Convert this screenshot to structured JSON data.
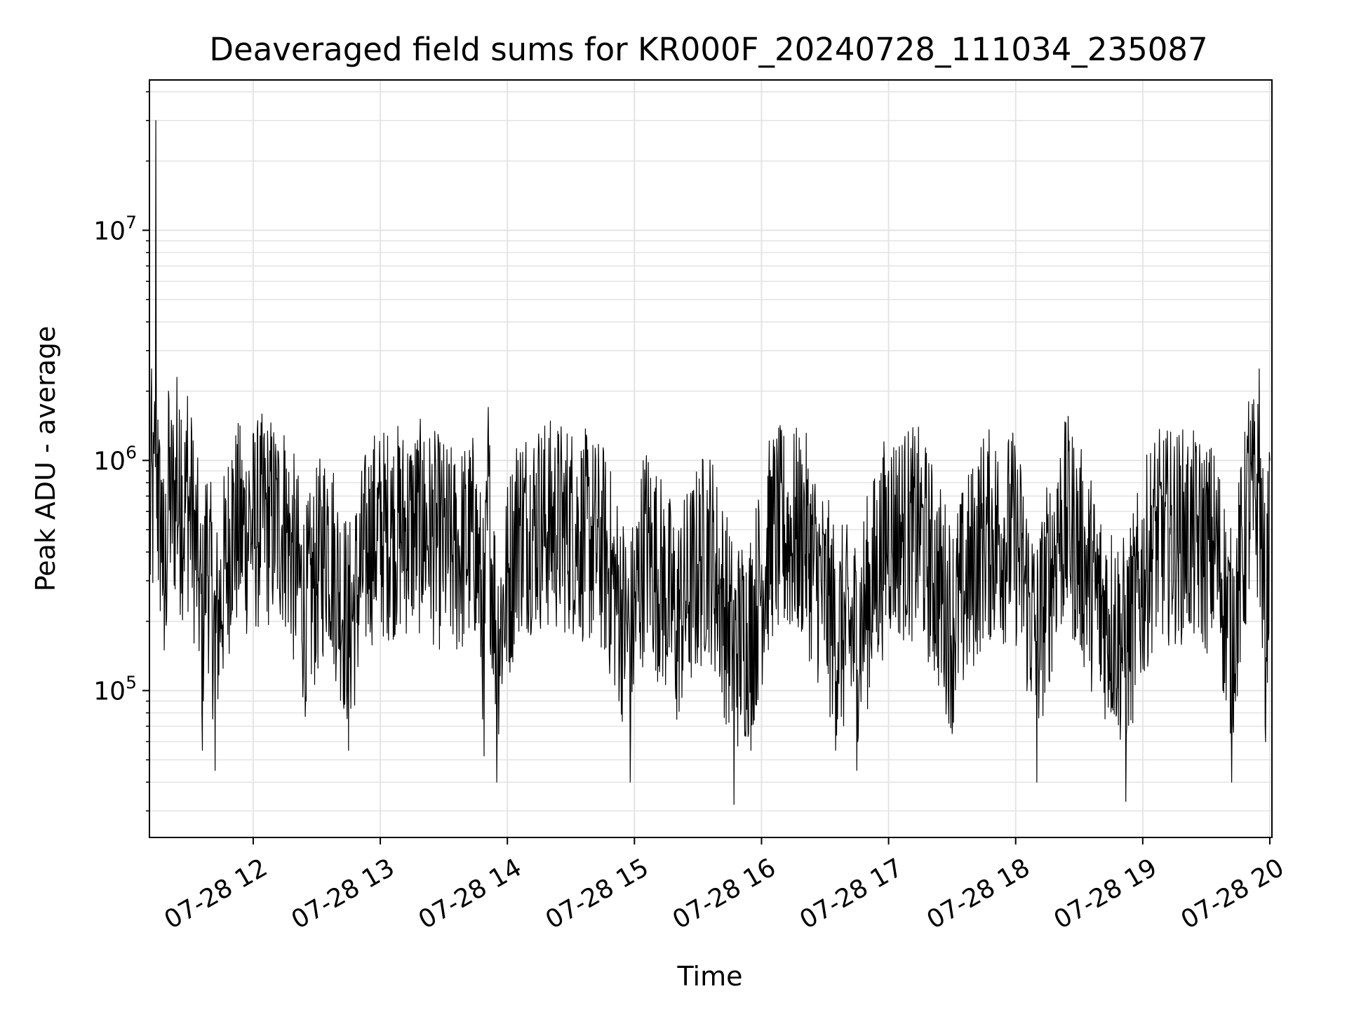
{
  "chart_data": {
    "type": "line",
    "title": "Deaveraged field sums for KR000F_20240728_111034_235087",
    "xlabel": "Time",
    "ylabel": "Peak ADU - average",
    "yscale": "log",
    "ylim": [
      23000,
      45000000
    ],
    "xlim": [
      "07-28 11:11",
      "07-28 20:01"
    ],
    "grid": true,
    "x_tick_labels": [
      "07-28 12",
      "07-28 13",
      "07-28 14",
      "07-28 15",
      "07-28 16",
      "07-28 17",
      "07-28 18",
      "07-28 19",
      "07-28 20"
    ],
    "y_tick_labels": [
      {
        "base": "10",
        "exp": "5"
      },
      {
        "base": "10",
        "exp": "6"
      },
      {
        "base": "10",
        "exp": "7"
      }
    ],
    "series": [
      {
        "color": "#000000",
        "points": [
          [
            "07-28 11:11",
            450000
          ],
          [
            "07-28 11:12",
            2500000
          ],
          [
            "07-28 11:13",
            1200000
          ],
          [
            "07-28 11:14",
            30000000
          ],
          [
            "07-28 11:15",
            1500000
          ],
          [
            "07-28 11:17",
            800000
          ],
          [
            "07-28 11:18",
            150000
          ],
          [
            "07-28 11:20",
            2000000
          ],
          [
            "07-28 11:24",
            2300000
          ],
          [
            "07-28 11:26",
            1500000
          ],
          [
            "07-28 11:29",
            1900000
          ],
          [
            "07-28 11:31",
            1300000
          ],
          [
            "07-28 11:34",
            300000
          ],
          [
            "07-28 11:36",
            55000
          ],
          [
            "07-28 11:38",
            600000
          ],
          [
            "07-28 11:42",
            45000
          ],
          [
            "07-28 11:50",
            1000000
          ],
          [
            "07-28 11:58",
            900000
          ],
          [
            "07-28 12:05",
            1250000
          ],
          [
            "07-28 12:15",
            1100000
          ],
          [
            "07-28 12:25",
            90000
          ],
          [
            "07-28 12:35",
            750000
          ],
          [
            "07-28 12:45",
            55000
          ],
          [
            "07-28 12:55",
            750000
          ],
          [
            "07-28 13:05",
            900000
          ],
          [
            "07-28 13:20",
            1000000
          ],
          [
            "07-28 13:35",
            450000
          ],
          [
            "07-28 13:45",
            750000
          ],
          [
            "07-28 13:49",
            52000
          ],
          [
            "07-28 13:51",
            1700000
          ],
          [
            "07-28 13:55",
            40000
          ],
          [
            "07-28 14:05",
            1000000
          ],
          [
            "07-28 14:15",
            1100000
          ],
          [
            "07-28 14:30",
            1000000
          ],
          [
            "07-28 14:45",
            550000
          ],
          [
            "07-28 14:58",
            40000
          ],
          [
            "07-28 15:05",
            650000
          ],
          [
            "07-28 15:20",
            75000
          ],
          [
            "07-28 15:35",
            600000
          ],
          [
            "07-28 15:47",
            32000
          ],
          [
            "07-28 15:55",
            55000
          ],
          [
            "07-28 16:05",
            850000
          ],
          [
            "07-28 16:20",
            800000
          ],
          [
            "07-28 16:35",
            55000
          ],
          [
            "07-28 16:45",
            45000
          ],
          [
            "07-28 17:00",
            900000
          ],
          [
            "07-28 17:15",
            800000
          ],
          [
            "07-28 17:30",
            65000
          ],
          [
            "07-28 17:45",
            800000
          ],
          [
            "07-28 18:00",
            750000
          ],
          [
            "07-28 18:10",
            40000
          ],
          [
            "07-28 18:20",
            800000
          ],
          [
            "07-28 18:25",
            1100000
          ],
          [
            "07-28 18:40",
            110000
          ],
          [
            "07-28 18:52",
            33000
          ],
          [
            "07-28 19:05",
            750000
          ],
          [
            "07-28 19:20",
            800000
          ],
          [
            "07-28 19:35",
            500000
          ],
          [
            "07-28 19:42",
            40000
          ],
          [
            "07-28 19:50",
            1800000
          ],
          [
            "07-28 19:55",
            2500000
          ],
          [
            "07-28 19:58",
            60000
          ],
          [
            "07-28 20:00",
            1000000
          ]
        ]
      }
    ]
  }
}
